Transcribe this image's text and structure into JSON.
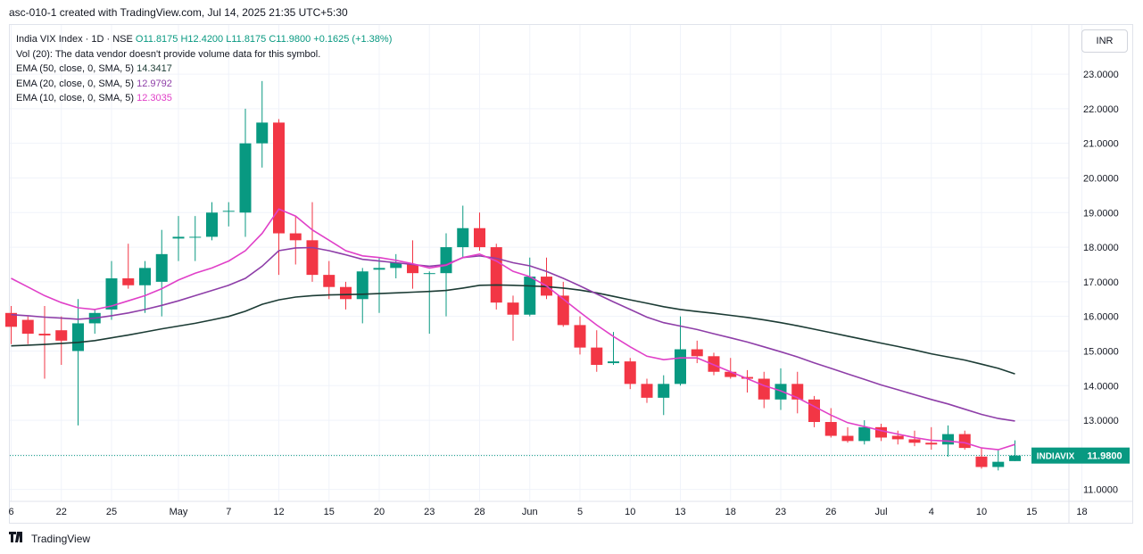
{
  "header": "asc-010-1 created with TradingView.com, Jul 14, 2025 21:35 UTC+5:30",
  "legend": {
    "symbol": "India VIX Index · 1D · NSE",
    "ohlc": "O11.8175 H12.4200 L11.8175 C11.9800 +0.1625 (+1.38%)",
    "vol": "Vol (20): The data vendor doesn't provide volume data for this symbol.",
    "ema50_label": "EMA (50, close, 0, SMA, 5)",
    "ema50_value": "14.3417",
    "ema20_label": "EMA (20, close, 0, SMA, 5)",
    "ema20_value": "12.9792",
    "ema10_label": "EMA (10, close, 0, SMA, 5)",
    "ema10_value": "12.3035"
  },
  "currency_button": "INR",
  "price_tag": {
    "ticker": "INDIAVIX",
    "value": "11.9800"
  },
  "brand": "TradingView",
  "colors": {
    "up": "#089981",
    "down": "#f23645",
    "ema50": "#1b3b34",
    "ema20": "#8e3ea8",
    "ema10": "#e040c8",
    "last_line": "#089981",
    "grid": "#f0f3fa",
    "text": "#131722"
  },
  "chart_data": {
    "type": "candlestick",
    "title": "India VIX Index · 1D · NSE",
    "ylim": [
      10.6,
      23.2
    ],
    "y_ticks": [
      "11.0000",
      "12.0000",
      "13.0000",
      "14.0000",
      "15.0000",
      "16.0000",
      "17.0000",
      "18.0000",
      "19.0000",
      "20.0000",
      "21.0000",
      "22.0000",
      "23.0000"
    ],
    "x_ticks": [
      {
        "i": 0,
        "label": "6"
      },
      {
        "i": 3,
        "label": "22"
      },
      {
        "i": 6,
        "label": "25"
      },
      {
        "i": 10,
        "label": "May"
      },
      {
        "i": 13,
        "label": "7"
      },
      {
        "i": 16,
        "label": "12"
      },
      {
        "i": 19,
        "label": "15"
      },
      {
        "i": 22,
        "label": "20"
      },
      {
        "i": 25,
        "label": "23"
      },
      {
        "i": 28,
        "label": "28"
      },
      {
        "i": 31,
        "label": "Jun"
      },
      {
        "i": 34,
        "label": "5"
      },
      {
        "i": 37,
        "label": "10"
      },
      {
        "i": 40,
        "label": "13"
      },
      {
        "i": 43,
        "label": "18"
      },
      {
        "i": 46,
        "label": "23"
      },
      {
        "i": 49,
        "label": "26"
      },
      {
        "i": 52,
        "label": "Jul"
      },
      {
        "i": 55,
        "label": "4"
      },
      {
        "i": 58,
        "label": "10"
      },
      {
        "i": 61,
        "label": "15"
      },
      {
        "i": 64,
        "label": "18"
      }
    ],
    "candles": [
      [
        16.1,
        16.3,
        15.2,
        15.7
      ],
      [
        15.9,
        16.0,
        15.2,
        15.5
      ],
      [
        15.5,
        16.3,
        14.2,
        15.45
      ],
      [
        15.6,
        16.0,
        14.6,
        15.3
      ],
      [
        15.0,
        16.5,
        12.85,
        15.8
      ],
      [
        15.8,
        16.2,
        15.5,
        16.1
      ],
      [
        16.2,
        17.6,
        15.9,
        17.1
      ],
      [
        17.1,
        18.1,
        16.8,
        16.9
      ],
      [
        16.9,
        17.6,
        16.1,
        17.4
      ],
      [
        17.0,
        18.5,
        16.0,
        17.8
      ],
      [
        18.25,
        18.9,
        17.6,
        18.3
      ],
      [
        18.3,
        18.9,
        17.6,
        18.3
      ],
      [
        18.3,
        19.3,
        18.2,
        19.0
      ],
      [
        19.05,
        19.3,
        18.6,
        19.05
      ],
      [
        19.0,
        22.0,
        18.3,
        21.0
      ],
      [
        21.0,
        22.8,
        20.3,
        21.6
      ],
      [
        21.6,
        21.7,
        17.2,
        18.4
      ],
      [
        18.4,
        18.9,
        17.5,
        18.2
      ],
      [
        18.2,
        19.3,
        17.0,
        17.2
      ],
      [
        17.2,
        17.6,
        16.5,
        16.85
      ],
      [
        16.85,
        17.0,
        16.2,
        16.5
      ],
      [
        16.5,
        17.4,
        15.8,
        17.3
      ],
      [
        17.35,
        17.7,
        16.1,
        17.4
      ],
      [
        17.4,
        17.8,
        17.1,
        17.55
      ],
      [
        17.5,
        18.2,
        16.8,
        17.25
      ],
      [
        17.25,
        17.3,
        15.5,
        17.25
      ],
      [
        17.25,
        18.4,
        16.0,
        18.0
      ],
      [
        18.0,
        19.2,
        17.7,
        18.55
      ],
      [
        18.55,
        19.0,
        17.9,
        18.0
      ],
      [
        18.0,
        18.1,
        16.2,
        16.4
      ],
      [
        16.4,
        16.6,
        15.3,
        16.05
      ],
      [
        16.05,
        17.7,
        16.0,
        17.15
      ],
      [
        17.15,
        17.7,
        16.5,
        16.6
      ],
      [
        16.6,
        17.0,
        15.7,
        15.75
      ],
      [
        15.75,
        16.0,
        14.9,
        15.1
      ],
      [
        15.1,
        15.6,
        14.4,
        14.6
      ],
      [
        14.65,
        15.55,
        14.6,
        14.7
      ],
      [
        14.7,
        14.8,
        13.9,
        14.05
      ],
      [
        14.05,
        14.2,
        13.5,
        13.65
      ],
      [
        13.65,
        14.3,
        13.15,
        14.05
      ],
      [
        14.05,
        16.0,
        14.0,
        15.05
      ],
      [
        15.05,
        15.3,
        14.65,
        14.85
      ],
      [
        14.85,
        14.95,
        14.3,
        14.4
      ],
      [
        14.4,
        14.8,
        14.2,
        14.25
      ],
      [
        14.25,
        14.45,
        13.8,
        14.2
      ],
      [
        14.2,
        14.4,
        13.35,
        13.6
      ],
      [
        13.6,
        14.5,
        13.3,
        14.05
      ],
      [
        14.05,
        14.4,
        13.2,
        13.6
      ],
      [
        13.6,
        13.7,
        12.8,
        12.95
      ],
      [
        12.95,
        13.35,
        12.5,
        12.55
      ],
      [
        12.55,
        12.8,
        12.35,
        12.4
      ],
      [
        12.4,
        13.0,
        12.3,
        12.8
      ],
      [
        12.8,
        12.9,
        12.4,
        12.5
      ],
      [
        12.55,
        12.7,
        12.3,
        12.45
      ],
      [
        12.45,
        12.7,
        12.25,
        12.35
      ],
      [
        12.35,
        12.8,
        12.15,
        12.3
      ],
      [
        12.3,
        12.85,
        11.95,
        12.6
      ],
      [
        12.6,
        12.7,
        12.15,
        12.2
      ],
      [
        11.95,
        12.2,
        11.6,
        11.65
      ],
      [
        11.65,
        12.15,
        11.55,
        11.8
      ],
      [
        11.82,
        12.42,
        11.82,
        11.98
      ]
    ],
    "series": [
      {
        "name": "EMA (50, close, 0, SMA, 5)",
        "color": "#1b3b34",
        "values": [
          15.15,
          15.17,
          15.19,
          15.22,
          15.25,
          15.3,
          15.38,
          15.46,
          15.55,
          15.64,
          15.72,
          15.8,
          15.9,
          16.0,
          16.15,
          16.35,
          16.48,
          16.56,
          16.6,
          16.62,
          16.63,
          16.64,
          16.66,
          16.68,
          16.7,
          16.72,
          16.75,
          16.82,
          16.9,
          16.91,
          16.9,
          16.88,
          16.86,
          16.82,
          16.76,
          16.68,
          16.58,
          16.48,
          16.38,
          16.28,
          16.2,
          16.14,
          16.09,
          16.03,
          15.97,
          15.9,
          15.82,
          15.73,
          15.63,
          15.53,
          15.43,
          15.33,
          15.23,
          15.13,
          15.03,
          14.92,
          14.83,
          14.74,
          14.62,
          14.5,
          14.34
        ]
      },
      {
        "name": "EMA (20, close, 0, SMA, 5)",
        "color": "#8e3ea8",
        "values": [
          16.05,
          16.02,
          15.98,
          15.95,
          15.92,
          15.95,
          16.02,
          16.1,
          16.2,
          16.32,
          16.45,
          16.6,
          16.75,
          16.9,
          17.1,
          17.45,
          17.9,
          17.98,
          17.99,
          17.9,
          17.78,
          17.65,
          17.6,
          17.55,
          17.5,
          17.45,
          17.5,
          17.7,
          17.75,
          17.68,
          17.55,
          17.46,
          17.3,
          17.1,
          16.88,
          16.65,
          16.42,
          16.2,
          15.98,
          15.82,
          15.72,
          15.62,
          15.5,
          15.38,
          15.26,
          15.12,
          14.98,
          14.83,
          14.66,
          14.5,
          14.34,
          14.18,
          14.02,
          13.88,
          13.74,
          13.6,
          13.47,
          13.32,
          13.17,
          13.05,
          12.98
        ]
      },
      {
        "name": "EMA (10, close, 0, SMA, 5)",
        "color": "#e040c8",
        "values": [
          17.1,
          16.85,
          16.6,
          16.4,
          16.25,
          16.2,
          16.3,
          16.45,
          16.6,
          16.8,
          17.05,
          17.25,
          17.4,
          17.6,
          17.9,
          18.4,
          19.1,
          18.9,
          18.5,
          18.2,
          17.9,
          17.75,
          17.7,
          17.62,
          17.52,
          17.4,
          17.48,
          17.7,
          17.8,
          17.6,
          17.3,
          17.15,
          16.88,
          16.5,
          16.12,
          15.75,
          15.42,
          15.12,
          14.85,
          14.75,
          14.8,
          14.8,
          14.6,
          14.4,
          14.2,
          14.0,
          13.85,
          13.65,
          13.4,
          13.15,
          12.93,
          12.82,
          12.7,
          12.6,
          12.5,
          12.42,
          12.4,
          12.35,
          12.2,
          12.15,
          12.3
        ]
      }
    ],
    "last_value": 11.98
  }
}
